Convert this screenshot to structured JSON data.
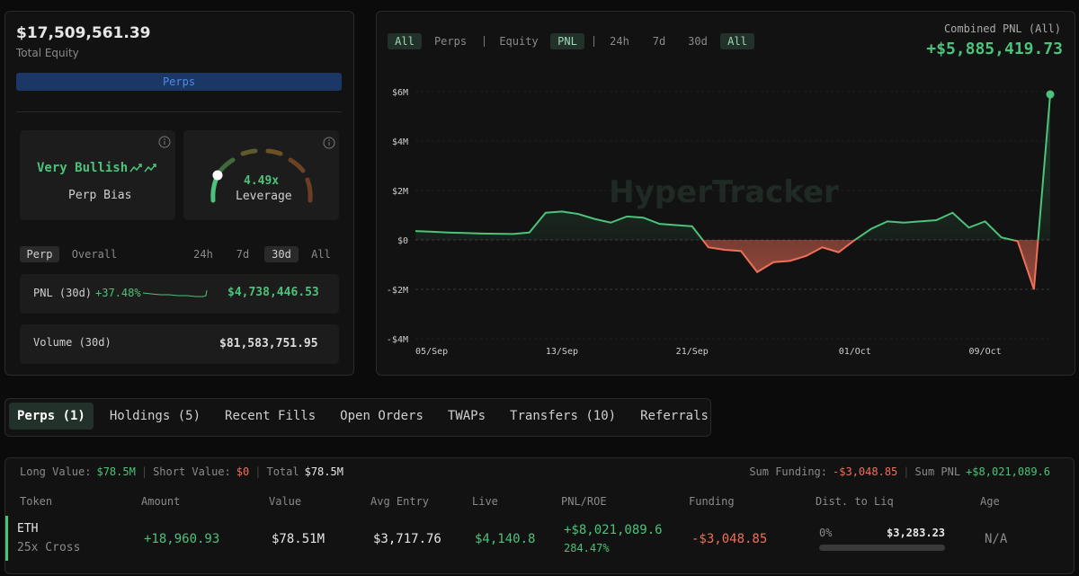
{
  "summary": {
    "total_equity": "$17,509,561.39",
    "total_equity_label": "Total Equity",
    "perps_button": "Perps"
  },
  "bias": {
    "value": "Very Bullish",
    "label": "Perp Bias"
  },
  "leverage": {
    "value": "4.49x",
    "label": "Leverage"
  },
  "stats_tabs": {
    "scope": [
      "Perp",
      "Overall"
    ],
    "ranges": [
      "24h",
      "7d",
      "30d",
      "All"
    ]
  },
  "pnl_30d": {
    "label": "PNL (30d)",
    "change": "+37.48%",
    "value": "$4,738,446.53"
  },
  "volume_30d": {
    "label": "Volume (30d)",
    "value": "$81,583,751.95"
  },
  "chart_controls": {
    "types": [
      "All",
      "Perps"
    ],
    "metrics": [
      "Equity",
      "PNL"
    ],
    "ranges": [
      "24h",
      "7d",
      "30d",
      "All"
    ]
  },
  "combined_pnl": {
    "label": "Combined PNL (All)",
    "value": "+$5,885,419.73"
  },
  "watermark": "HyperTracker",
  "chart_data": {
    "type": "line",
    "x": [
      "04/Sep",
      "05/Sep",
      "06/Sep",
      "07/Sep",
      "08/Sep",
      "09/Sep",
      "10/Sep",
      "11/Sep",
      "12/Sep",
      "13/Sep",
      "14/Sep",
      "15/Sep",
      "16/Sep",
      "17/Sep",
      "18/Sep",
      "19/Sep",
      "20/Sep",
      "21/Sep",
      "22/Sep",
      "23/Sep",
      "24/Sep",
      "25/Sep",
      "26/Sep",
      "27/Sep",
      "28/Sep",
      "29/Sep",
      "30/Sep",
      "01/Oct",
      "02/Oct",
      "03/Oct",
      "04/Oct",
      "05/Oct",
      "06/Oct",
      "07/Oct",
      "08/Oct",
      "09/Oct",
      "10/Oct",
      "11/Oct",
      "12/Oct",
      "13/Oct"
    ],
    "values": [
      0.36,
      0.33,
      0.3,
      0.28,
      0.26,
      0.25,
      0.24,
      0.3,
      1.1,
      1.15,
      1.05,
      0.85,
      0.7,
      0.95,
      0.9,
      0.65,
      0.6,
      0.55,
      -0.3,
      -0.4,
      -0.45,
      -1.3,
      -0.9,
      -0.85,
      -0.65,
      -0.3,
      -0.5,
      0.0,
      0.45,
      0.75,
      0.7,
      0.75,
      0.8,
      1.1,
      0.5,
      0.75,
      0.1,
      -0.05,
      -2.0,
      5.89
    ],
    "color": "#4cc27a",
    "negative_color": "#ef6f58",
    "ylim": [
      -4,
      6.3
    ],
    "yticks": [
      {
        "value": -4,
        "label": "-$4M"
      },
      {
        "value": -2,
        "label": "-$2M"
      },
      {
        "value": 0,
        "label": "$0"
      },
      {
        "value": 2,
        "label": "$2M"
      },
      {
        "value": 4,
        "label": "$4M"
      },
      {
        "value": 6,
        "label": "$6M"
      }
    ],
    "xticks": [
      "05/Sep",
      "13/Sep",
      "21/Sep",
      "01/Oct",
      "09/Oct"
    ],
    "grid": true
  },
  "tabs": [
    "Perps (1)",
    "Holdings (5)",
    "Recent Fills",
    "Open Orders",
    "TWAPs",
    "Transfers (10)",
    "Referrals"
  ],
  "totals": {
    "long_label": "Long Value:",
    "long_value": "$78.5M",
    "short_label": "Short Value:",
    "short_value": "$0",
    "total_label": "Total",
    "total_value": "$78.5M",
    "funding_label": "Sum Funding:",
    "funding_value": "-$3,048.85",
    "pnl_label": "Sum PNL",
    "pnl_value": "+$8,021,089.6"
  },
  "table": {
    "columns": [
      "Token",
      "Amount",
      "Value",
      "Avg Entry",
      "Live",
      "PNL/ROE",
      "Funding",
      "Dist. to Liq",
      "Age"
    ],
    "rows": [
      {
        "token": "ETH",
        "leverage": "25x Cross",
        "amount": "+18,960.93",
        "value": "$78.51M",
        "avg_entry": "$3,717.76",
        "live": "$4,140.8",
        "pnl": "+$8,021,089.6",
        "roe": "284.47%",
        "funding": "-$3,048.85",
        "dist_pct": "0%",
        "liq_price": "$3,283.23",
        "age": "N/A"
      }
    ]
  }
}
